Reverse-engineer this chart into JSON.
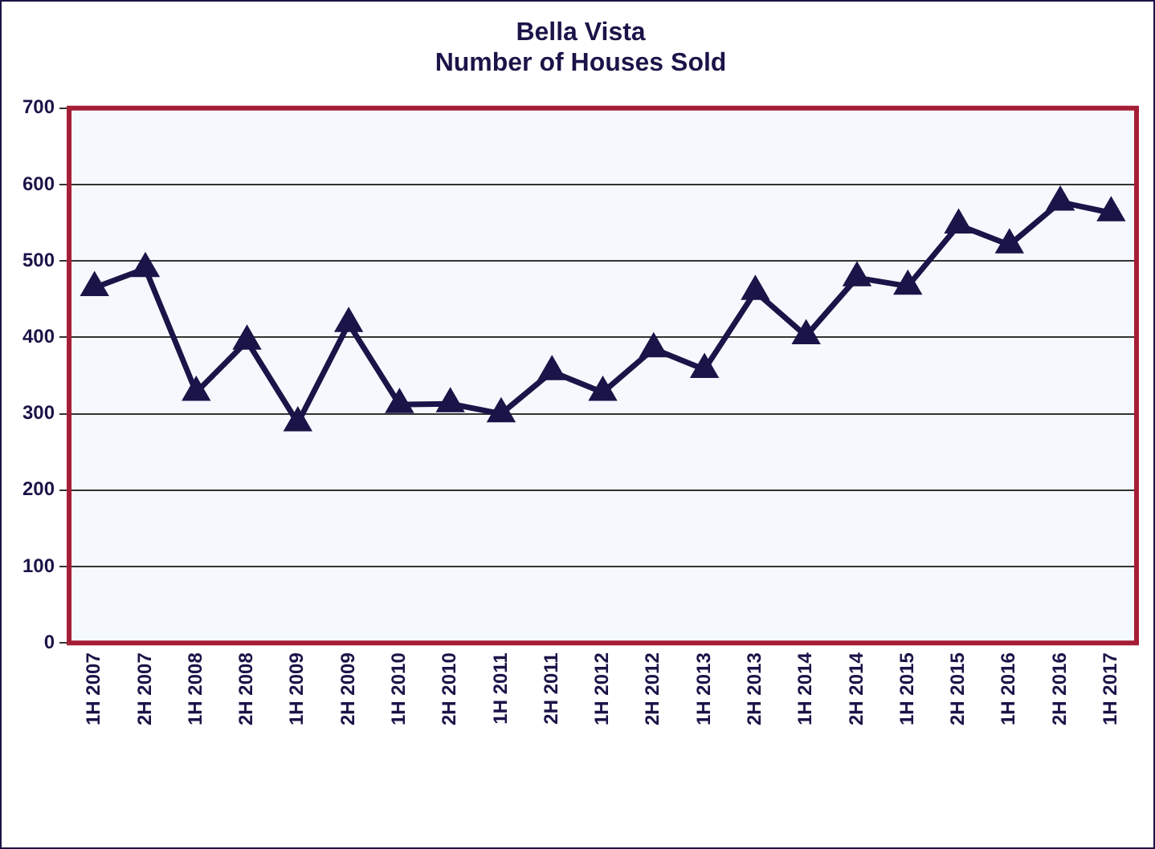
{
  "chart_data": {
    "type": "line",
    "title": [
      "Bella Vista",
      "Number of Houses Sold"
    ],
    "categories": [
      "1H 2007",
      "2H 2007",
      "1H 2008",
      "2H 2008",
      "1H 2009",
      "2H 2009",
      "1H 2010",
      "2H 2010",
      "1H 2011",
      "2H 2011",
      "1H 2012",
      "2H 2012",
      "1H 2013",
      "2H 2013",
      "1H 2014",
      "2H 2014",
      "1H 2015",
      "2H 2015",
      "1H 2016",
      "2H 2016",
      "1H 2017"
    ],
    "series": [
      {
        "color": "#1a1448",
        "values": [
          465,
          490,
          328,
          395,
          288,
          418,
          312,
          313,
          300,
          355,
          328,
          385,
          358,
          460,
          402,
          478,
          467,
          547,
          521,
          577,
          563
        ]
      }
    ],
    "ylim": [
      0,
      700
    ],
    "yticks": [
      0,
      100,
      200,
      300,
      400,
      500,
      600,
      700
    ],
    "grid": "y",
    "legend": false,
    "marker": "triangle",
    "line_style": "solid"
  }
}
